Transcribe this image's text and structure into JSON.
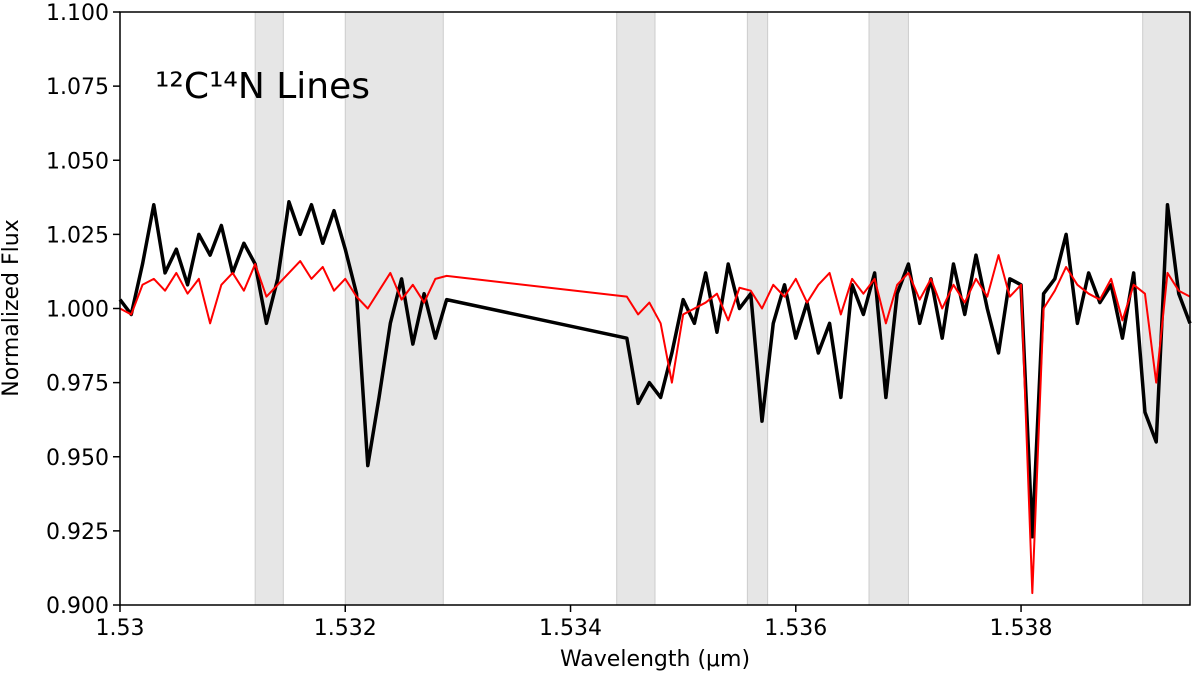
{
  "chart_data": {
    "type": "line",
    "annotation": "¹²C¹⁴N Lines",
    "x_label": "Wavelength (μm)",
    "y_label": "Normalized Flux",
    "xlim": [
      1.53,
      1.5395
    ],
    "ylim": [
      0.9,
      1.1
    ],
    "xticks": [
      1.53,
      1.532,
      1.534,
      1.536,
      1.538
    ],
    "yticks": [
      {
        "value": 0.9,
        "label": "0.900"
      },
      0.925,
      {
        "value": 0.95,
        "label": "0.950"
      },
      0.975,
      {
        "value": 1.0,
        "label": "1.000"
      },
      1.025,
      {
        "value": 1.05,
        "label": "1.050"
      },
      1.075,
      {
        "value": 1.1,
        "label": "1.100"
      }
    ],
    "shaded_regions": [
      [
        1.5312,
        1.53145
      ],
      [
        1.532,
        1.53287
      ],
      [
        1.53441,
        1.53475
      ],
      [
        1.53557,
        1.53575
      ],
      [
        1.53665,
        1.537
      ],
      [
        1.53908,
        1.5395
      ]
    ],
    "shade_color": "#e6e6e6",
    "x": [
      1.53,
      1.5301,
      1.5302,
      1.5303,
      1.5304,
      1.5305,
      1.5306,
      1.5307,
      1.5308,
      1.5309,
      1.531,
      1.5311,
      1.5312,
      1.5313,
      1.5314,
      1.5315,
      1.5316,
      1.5317,
      1.5318,
      1.5319,
      1.532,
      1.5321,
      1.5322,
      1.5323,
      1.5324,
      1.5325,
      1.5326,
      1.5327,
      1.5328,
      1.5329,
      1.5345,
      1.5346,
      1.5347,
      1.5348,
      1.5349,
      1.535,
      1.5351,
      1.5352,
      1.5353,
      1.5354,
      1.5355,
      1.5356,
      1.5357,
      1.5358,
      1.5359,
      1.536,
      1.5361,
      1.5362,
      1.5363,
      1.5364,
      1.5365,
      1.5366,
      1.5367,
      1.5368,
      1.5369,
      1.537,
      1.5371,
      1.5372,
      1.5373,
      1.5374,
      1.5375,
      1.5376,
      1.5377,
      1.5378,
      1.5379,
      1.538,
      1.5381,
      1.5382,
      1.5383,
      1.5384,
      1.5385,
      1.5386,
      1.5387,
      1.5388,
      1.5389,
      1.539,
      1.5391,
      1.5392,
      1.5393,
      1.5394,
      1.5395
    ],
    "series": [
      {
        "color": "#000000",
        "width": 3.5,
        "values": [
          1.003,
          0.998,
          1.015,
          1.035,
          1.012,
          1.02,
          1.008,
          1.025,
          1.018,
          1.028,
          1.012,
          1.022,
          1.015,
          0.995,
          1.01,
          1.036,
          1.025,
          1.035,
          1.022,
          1.033,
          1.02,
          1.005,
          0.947,
          0.97,
          0.995,
          1.01,
          0.988,
          1.005,
          0.99,
          1.003,
          0.99,
          0.968,
          0.975,
          0.97,
          0.985,
          1.003,
          0.995,
          1.012,
          0.992,
          1.015,
          1.0,
          1.005,
          0.962,
          0.995,
          1.008,
          0.99,
          1.002,
          0.985,
          0.995,
          0.97,
          1.008,
          0.998,
          1.012,
          0.97,
          1.005,
          1.015,
          0.995,
          1.01,
          0.99,
          1.015,
          0.998,
          1.018,
          1.0,
          0.985,
          1.01,
          1.008,
          0.923,
          1.005,
          1.01,
          1.025,
          0.995,
          1.012,
          1.002,
          1.008,
          0.99,
          1.012,
          0.965,
          0.955,
          1.035,
          1.005,
          0.995
        ]
      },
      {
        "color": "#ff0000",
        "width": 2,
        "values": [
          1.0,
          0.998,
          1.008,
          1.01,
          1.006,
          1.012,
          1.005,
          1.01,
          0.995,
          1.008,
          1.012,
          1.006,
          1.015,
          1.004,
          1.008,
          1.012,
          1.016,
          1.01,
          1.014,
          1.006,
          1.01,
          1.004,
          1.0,
          1.006,
          1.012,
          1.003,
          1.008,
          1.002,
          1.01,
          1.011,
          1.004,
          0.998,
          1.002,
          0.995,
          0.975,
          0.998,
          1.0,
          1.002,
          1.005,
          0.996,
          1.007,
          1.006,
          1.0,
          1.008,
          1.004,
          1.01,
          1.002,
          1.008,
          1.012,
          0.998,
          1.01,
          1.005,
          1.01,
          0.995,
          1.008,
          1.012,
          1.003,
          1.01,
          1.0,
          1.008,
          1.002,
          1.01,
          1.004,
          1.018,
          1.004,
          1.008,
          0.904,
          1.0,
          1.006,
          1.014,
          1.008,
          1.005,
          1.003,
          1.01,
          0.996,
          1.008,
          1.005,
          0.975,
          1.012,
          1.006,
          1.004
        ]
      }
    ]
  }
}
